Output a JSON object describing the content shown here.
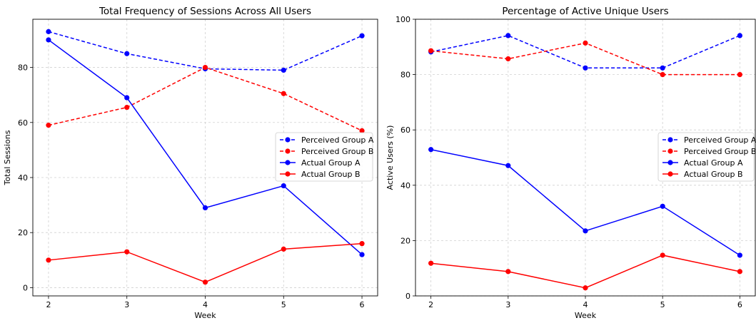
{
  "chart_data": [
    {
      "type": "line",
      "title": "Total Frequency of Sessions Across All Users",
      "xlabel": "Week",
      "ylabel": "Total Sessions",
      "x": [
        2,
        3,
        4,
        5,
        6
      ],
      "xticks": [
        "2",
        "3",
        "4",
        "5",
        "6"
      ],
      "xlim": [
        1.8,
        6.2
      ],
      "ylim": [
        -3,
        97.5
      ],
      "yticks": [
        "0",
        "20",
        "40",
        "60",
        "80"
      ],
      "ytick_values": [
        0,
        20,
        40,
        60,
        80
      ],
      "grid": true,
      "legend_position": "center-right",
      "series": [
        {
          "name": "Perceived Group A",
          "values": [
            93,
            85,
            79.5,
            79,
            91.5
          ],
          "color": "#0000ff",
          "style": "dashed"
        },
        {
          "name": "Perceived Group B",
          "values": [
            59,
            65.5,
            80,
            70.5,
            57
          ],
          "color": "#ff0000",
          "style": "dashed"
        },
        {
          "name": "Actual Group A",
          "values": [
            90,
            69,
            29,
            37,
            12
          ],
          "color": "#0000ff",
          "style": "solid"
        },
        {
          "name": "Actual Group B",
          "values": [
            10,
            13,
            2,
            14,
            16
          ],
          "color": "#ff0000",
          "style": "solid"
        }
      ]
    },
    {
      "type": "line",
      "title": "Percentage of Active Unique Users",
      "xlabel": "Week",
      "ylabel": "Active Users (%)",
      "x": [
        2,
        3,
        4,
        5,
        6
      ],
      "xticks": [
        "2",
        "3",
        "4",
        "5",
        "6"
      ],
      "xlim": [
        1.8,
        6.2
      ],
      "ylim": [
        0,
        100
      ],
      "yticks": [
        "0",
        "20",
        "40",
        "60",
        "80",
        "100"
      ],
      "ytick_values": [
        0,
        20,
        40,
        60,
        80,
        100
      ],
      "grid": true,
      "legend_position": "center-right",
      "series": [
        {
          "name": "Perceived Group A",
          "values": [
            88.2,
            94.1,
            82.4,
            82.4,
            94.1
          ],
          "color": "#0000ff",
          "style": "dashed"
        },
        {
          "name": "Perceived Group B",
          "values": [
            88.6,
            85.7,
            91.4,
            80,
            80
          ],
          "color": "#ff0000",
          "style": "dashed"
        },
        {
          "name": "Actual Group A",
          "values": [
            52.9,
            47.1,
            23.5,
            32.4,
            14.7
          ],
          "color": "#0000ff",
          "style": "solid"
        },
        {
          "name": "Actual Group B",
          "values": [
            11.8,
            8.8,
            2.9,
            14.7,
            8.8
          ],
          "color": "#ff0000",
          "style": "solid"
        }
      ]
    }
  ]
}
